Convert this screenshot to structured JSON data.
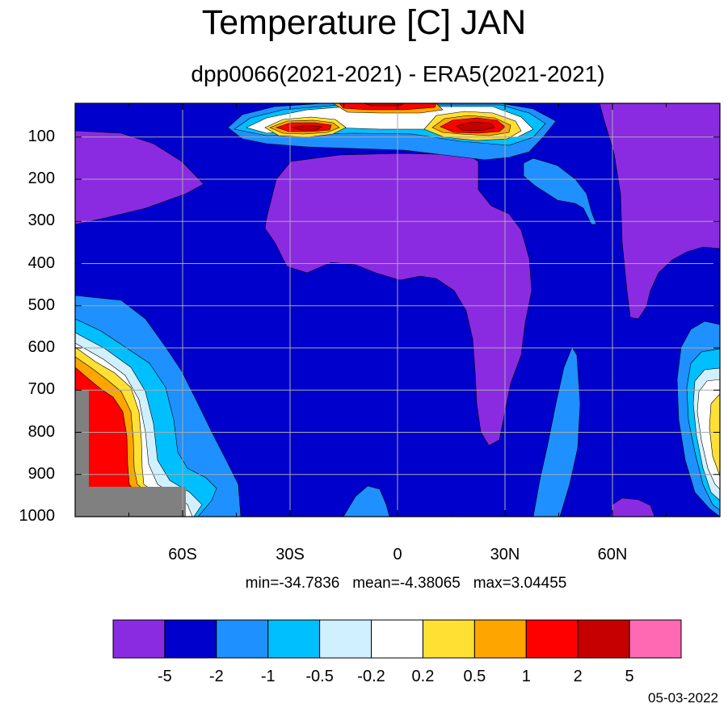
{
  "title": "Temperature [C] JAN",
  "subtitle": "dpp0066(2021-2021) - ERA5(2021-2021)",
  "stats": {
    "min": "min=-34.7836",
    "mean": "mean=-4.38065",
    "max": "max=3.04455"
  },
  "date": "05-03-2022",
  "colors": {
    "purple": "#8a2be2",
    "navy": "#0000cd",
    "mid_blue": "#1e90ff",
    "sky": "#00bfff",
    "pale": "#d1f0ff",
    "white": "#ffffff",
    "yellow": "#ffe033",
    "orange": "#ffa500",
    "red": "#ff0000",
    "dark_red": "#c60000",
    "pink": "#ff69b4",
    "missing": "#808080"
  },
  "chart_data": {
    "type": "contour",
    "x_ticks": [
      {
        "value": -60,
        "label": "60S"
      },
      {
        "value": -30,
        "label": "30S"
      },
      {
        "value": 0,
        "label": "0"
      },
      {
        "value": 30,
        "label": "30N"
      },
      {
        "value": 60,
        "label": "60N"
      }
    ],
    "y_ticks": [
      {
        "value": 100,
        "label": "100"
      },
      {
        "value": 200,
        "label": "200"
      },
      {
        "value": 300,
        "label": "300"
      },
      {
        "value": 400,
        "label": "400"
      },
      {
        "value": 500,
        "label": "500"
      },
      {
        "value": 600,
        "label": "600"
      },
      {
        "value": 700,
        "label": "700"
      },
      {
        "value": 800,
        "label": "800"
      },
      {
        "value": 900,
        "label": "900"
      },
      {
        "value": 1000,
        "label": "1000"
      }
    ],
    "xlim": [
      -90,
      90
    ],
    "ylim": [
      1000,
      20
    ],
    "grid": true,
    "contour_levels": [
      "-5",
      "-2",
      "-1",
      "-0.5",
      "-0.2",
      "0.2",
      "0.5",
      "1",
      "2",
      "5"
    ],
    "colorbar_colors": [
      "#8a2be2",
      "#0000cd",
      "#1e90ff",
      "#00bfff",
      "#d1f0ff",
      "#ffffff",
      "#ffe033",
      "#ffa500",
      "#ff0000",
      "#c60000",
      "#ff69b4"
    ],
    "min": -34.7836,
    "mean": -4.38065,
    "max": 3.04455
  }
}
